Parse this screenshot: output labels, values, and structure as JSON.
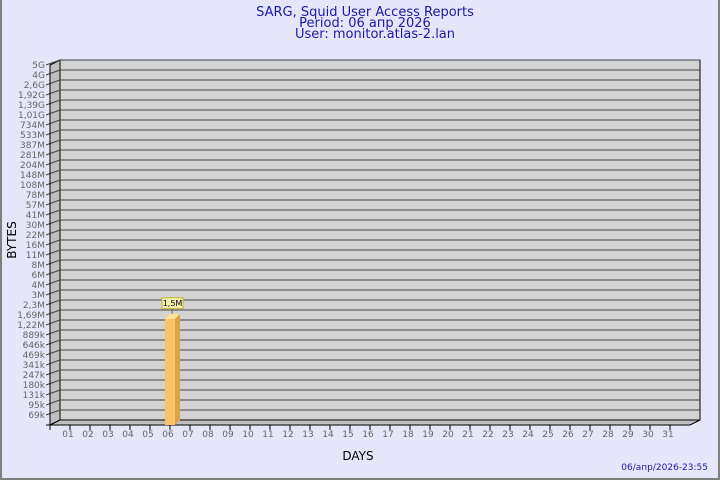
{
  "chart_data": {
    "type": "bar",
    "title": "SARG, Squid User Access Reports",
    "subtitle_period": "Period: 06 апр 2026",
    "subtitle_user": "User: monitor.atlas-2.lan",
    "xlabel": "DAYS",
    "ylabel": "BYTES",
    "y_scale": "log",
    "y_tick_labels": [
      "5G",
      "4G",
      "2,6G",
      "1,92G",
      "1,39G",
      "1,01G",
      "734M",
      "533M",
      "387M",
      "281M",
      "204M",
      "148M",
      "108M",
      "78M",
      "57M",
      "41M",
      "30M",
      "22M",
      "16M",
      "11M",
      "8M",
      "6M",
      "4M",
      "3M",
      "2,3M",
      "1,69M",
      "1,22M",
      "889k",
      "646k",
      "469k",
      "341k",
      "247k",
      "180k",
      "131k",
      "95k",
      "69k"
    ],
    "categories": [
      "01",
      "02",
      "03",
      "04",
      "05",
      "06",
      "07",
      "08",
      "09",
      "10",
      "11",
      "12",
      "13",
      "14",
      "15",
      "16",
      "17",
      "18",
      "19",
      "20",
      "21",
      "22",
      "23",
      "24",
      "25",
      "26",
      "27",
      "28",
      "29",
      "30",
      "31"
    ],
    "values": [
      0,
      0,
      0,
      0,
      0,
      1500000,
      0,
      0,
      0,
      0,
      0,
      0,
      0,
      0,
      0,
      0,
      0,
      0,
      0,
      0,
      0,
      0,
      0,
      0,
      0,
      0,
      0,
      0,
      0,
      0,
      0
    ],
    "data_labels": {
      "06": "1,5M"
    },
    "grid": true,
    "colors": {
      "bar": "#fcc266",
      "bar_side": "#e0a448",
      "bar_top": "#fde29a",
      "plot_bg": "#d3d3d3",
      "page_bg": "#e6e6fa",
      "title": "#1a1aa6"
    },
    "footer_timestamp": "06/апр/2026-23:55"
  }
}
